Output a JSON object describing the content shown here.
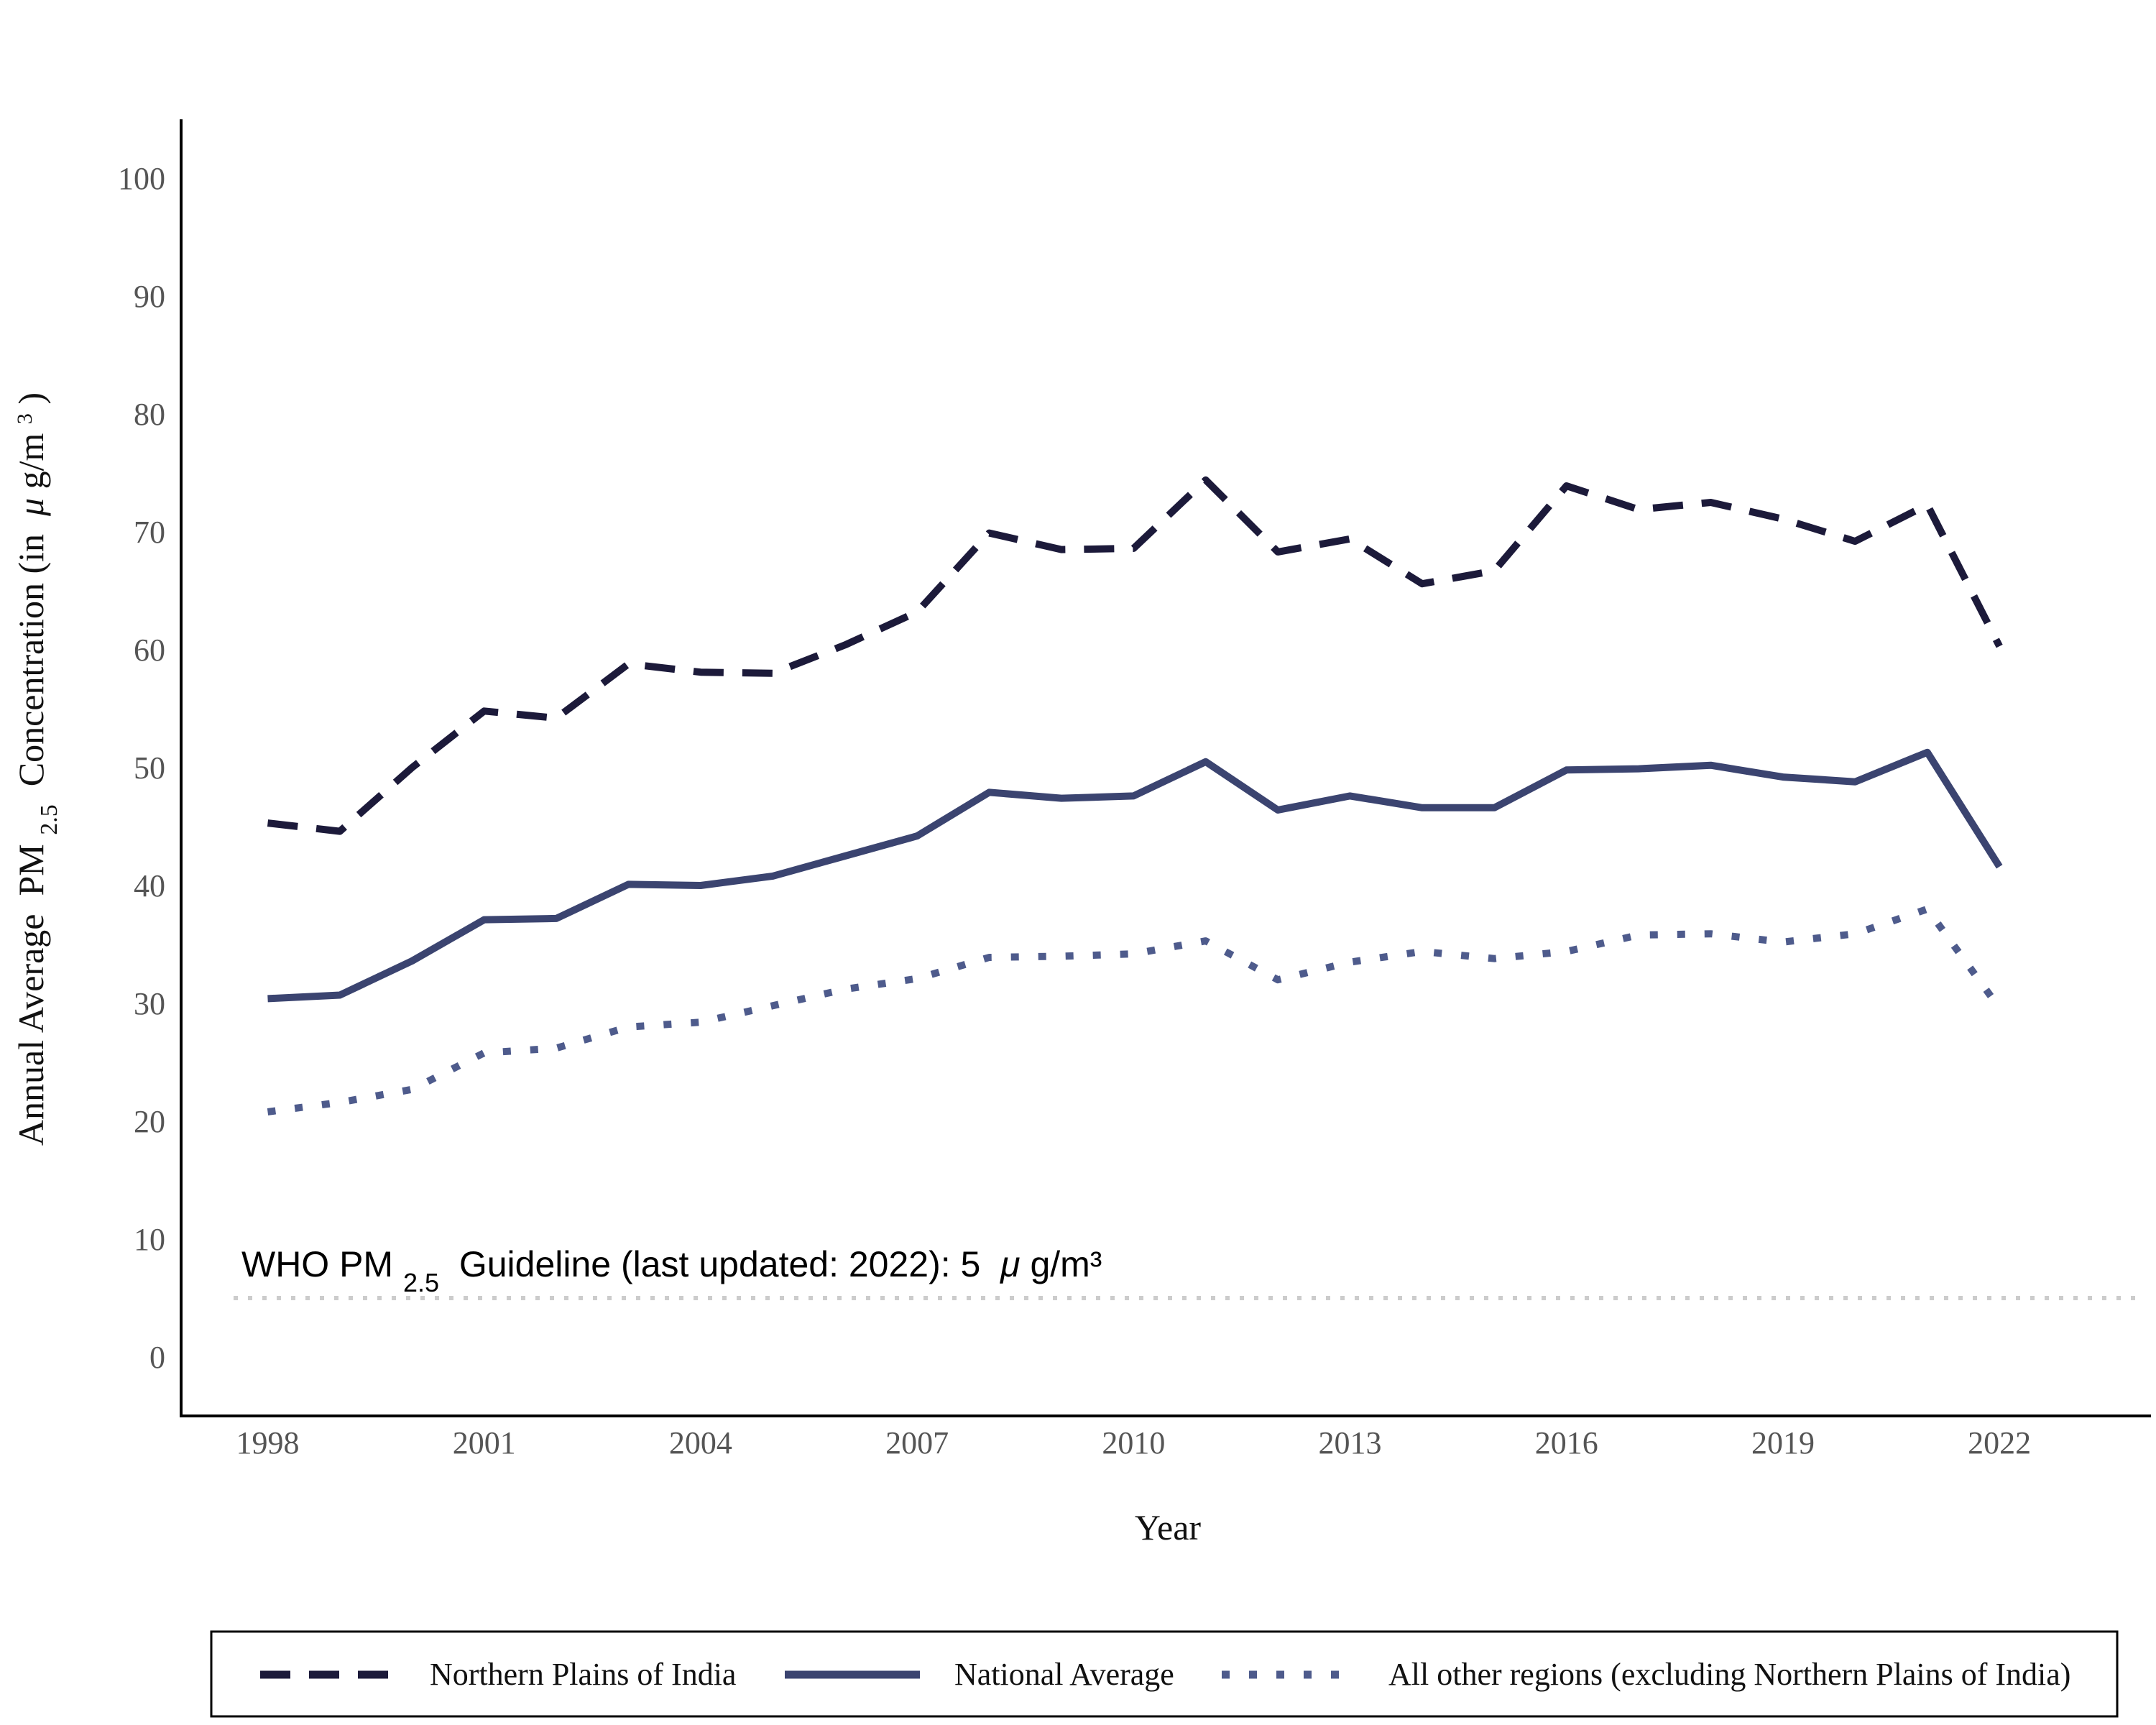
{
  "chart_data": {
    "type": "line",
    "xlabel": "Year",
    "ylabel_parts": {
      "prefix": "Annual Average ",
      "pm": "PM",
      "pm_sub": "2.5",
      "mid": " Concentration (in ",
      "mu": "μ",
      "unit": "g/m",
      "sup": "3",
      "suffix": ")"
    },
    "x": [
      1998,
      1999,
      2000,
      2001,
      2002,
      2003,
      2004,
      2005,
      2006,
      2007,
      2008,
      2009,
      2010,
      2011,
      2012,
      2013,
      2014,
      2015,
      2016,
      2017,
      2018,
      2019,
      2020,
      2021,
      2022
    ],
    "x_ticks": [
      "1998",
      "2001",
      "2004",
      "2007",
      "2010",
      "2013",
      "2016",
      "2019",
      "2022"
    ],
    "y_ticks": [
      "0",
      "10",
      "20",
      "30",
      "40",
      "50",
      "60",
      "70",
      "80",
      "90",
      "100"
    ],
    "xlim": [
      1996.8,
      2024.1
    ],
    "ylim": [
      -5,
      105
    ],
    "grid": false,
    "legend_position": "bottom",
    "series": [
      {
        "name": "Northern Plains of India",
        "style": "dashed",
        "color": "#1c1a3a",
        "values": [
          45.3,
          44.6,
          50.0,
          54.8,
          54.2,
          58.8,
          58.1,
          58.0,
          60.4,
          63.2,
          69.9,
          68.5,
          68.6,
          74.4,
          68.3,
          69.4,
          65.6,
          66.7,
          73.9,
          71.9,
          72.5,
          71.1,
          69.2,
          72.3,
          60.3
        ]
      },
      {
        "name": "National Average",
        "style": "solid",
        "color": "#3b4470",
        "values": [
          30.4,
          30.7,
          33.6,
          37.1,
          37.2,
          40.1,
          40.0,
          40.8,
          42.5,
          44.2,
          47.9,
          47.4,
          47.6,
          50.5,
          46.4,
          47.6,
          46.6,
          46.6,
          49.8,
          49.9,
          50.2,
          49.2,
          48.8,
          51.3,
          41.6
        ]
      },
      {
        "name": "All other regions (excluding Northern Plains of India)",
        "style": "dotted",
        "color": "#4e5b8c",
        "values": [
          20.8,
          21.6,
          22.7,
          25.8,
          26.2,
          28.0,
          28.4,
          29.8,
          31.2,
          32.1,
          33.9,
          34.0,
          34.2,
          35.3,
          32.0,
          33.5,
          34.4,
          33.8,
          34.4,
          35.8,
          35.9,
          35.2,
          35.9,
          38.0,
          29.6
        ]
      }
    ],
    "reference_line": {
      "value": 5,
      "color": "#cccccc",
      "label_parts": {
        "prefix": "WHO PM",
        "sub": "2.5",
        "mid": " Guideline (last updated: 2022): 5 ",
        "mu": "μ",
        "unit": "g/m³"
      }
    }
  }
}
